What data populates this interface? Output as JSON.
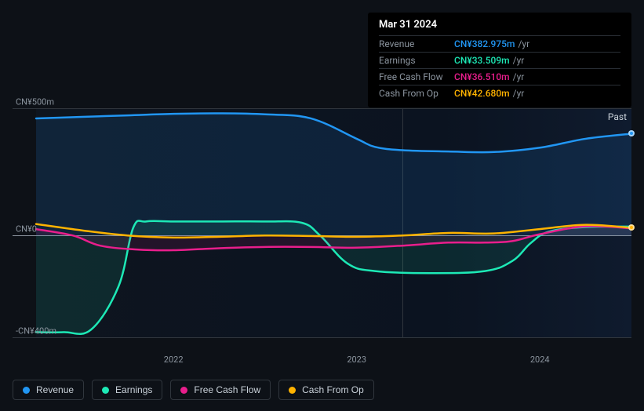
{
  "tooltip": {
    "title": "Mar 31 2024",
    "suffix": "/yr",
    "rows": [
      {
        "label": "Revenue",
        "value": "CN¥382.975m",
        "color": "#2196f3"
      },
      {
        "label": "Earnings",
        "value": "CN¥33.509m",
        "color": "#1de9b6"
      },
      {
        "label": "Free Cash Flow",
        "value": "CN¥36.510m",
        "color": "#e91e8c"
      },
      {
        "label": "Cash From Op",
        "value": "CN¥42.680m",
        "color": "#ffb300"
      }
    ]
  },
  "chart": {
    "type": "area",
    "background_gradient": [
      "#0e151f",
      "#0f1b2e"
    ],
    "grid_color": "#30363d",
    "zero_line_color": "#8b949e",
    "past_label": "Past",
    "y_domain": [
      -400,
      500
    ],
    "y_ticks": [
      {
        "v": 500,
        "label": "CN¥500m"
      },
      {
        "v": 0,
        "label": "CN¥0"
      },
      {
        "v": -400,
        "label": "-CN¥400m"
      }
    ],
    "x_domain": [
      2021.25,
      2024.5
    ],
    "x_ticks": [
      {
        "v": 2022,
        "label": "2022"
      },
      {
        "v": 2023,
        "label": "2023"
      },
      {
        "v": 2024,
        "label": "2024"
      }
    ],
    "vline_x": 2023.25,
    "line_width": 2.5,
    "series": [
      {
        "name": "revenue",
        "label": "Revenue",
        "color": "#2196f3",
        "fill_opacity": 0.12,
        "points": [
          [
            2021.25,
            460
          ],
          [
            2021.5,
            466
          ],
          [
            2021.75,
            472
          ],
          [
            2022.0,
            478
          ],
          [
            2022.25,
            480
          ],
          [
            2022.5,
            476
          ],
          [
            2022.75,
            460
          ],
          [
            2023.0,
            380
          ],
          [
            2023.1,
            348
          ],
          [
            2023.25,
            335
          ],
          [
            2023.5,
            330
          ],
          [
            2023.75,
            328
          ],
          [
            2024.0,
            345
          ],
          [
            2024.25,
            380
          ],
          [
            2024.5,
            400
          ]
        ]
      },
      {
        "name": "earnings",
        "label": "Earnings",
        "color": "#1de9b6",
        "fill_opacity": 0.1,
        "points": [
          [
            2021.25,
            -380
          ],
          [
            2021.4,
            -380
          ],
          [
            2021.55,
            -370
          ],
          [
            2021.7,
            -200
          ],
          [
            2021.78,
            30
          ],
          [
            2021.85,
            55
          ],
          [
            2022.0,
            55
          ],
          [
            2022.25,
            55
          ],
          [
            2022.5,
            55
          ],
          [
            2022.7,
            50
          ],
          [
            2022.8,
            0
          ],
          [
            2022.95,
            -110
          ],
          [
            2023.1,
            -140
          ],
          [
            2023.4,
            -148
          ],
          [
            2023.7,
            -140
          ],
          [
            2023.85,
            -100
          ],
          [
            2023.95,
            -30
          ],
          [
            2024.05,
            15
          ],
          [
            2024.25,
            33
          ],
          [
            2024.5,
            35
          ]
        ]
      },
      {
        "name": "fcf",
        "label": "Free Cash Flow",
        "color": "#e91e8c",
        "fill_opacity": 0.1,
        "points": [
          [
            2021.25,
            25
          ],
          [
            2021.45,
            0
          ],
          [
            2021.6,
            -40
          ],
          [
            2021.8,
            -55
          ],
          [
            2022.0,
            -58
          ],
          [
            2022.25,
            -50
          ],
          [
            2022.5,
            -45
          ],
          [
            2022.75,
            -45
          ],
          [
            2023.0,
            -48
          ],
          [
            2023.25,
            -40
          ],
          [
            2023.5,
            -28
          ],
          [
            2023.7,
            -28
          ],
          [
            2023.85,
            -22
          ],
          [
            2024.0,
            5
          ],
          [
            2024.25,
            36
          ],
          [
            2024.5,
            28
          ]
        ]
      },
      {
        "name": "cfo",
        "label": "Cash From Op",
        "color": "#ffb300",
        "fill_opacity": 0.0,
        "points": [
          [
            2021.25,
            45
          ],
          [
            2021.5,
            20
          ],
          [
            2021.75,
            0
          ],
          [
            2022.0,
            -8
          ],
          [
            2022.25,
            -5
          ],
          [
            2022.5,
            0
          ],
          [
            2022.75,
            -2
          ],
          [
            2023.0,
            -5
          ],
          [
            2023.25,
            0
          ],
          [
            2023.5,
            10
          ],
          [
            2023.75,
            8
          ],
          [
            2024.0,
            25
          ],
          [
            2024.25,
            42
          ],
          [
            2024.5,
            30
          ]
        ]
      }
    ]
  },
  "legend": [
    {
      "label": "Revenue",
      "color": "#2196f3",
      "key": "revenue"
    },
    {
      "label": "Earnings",
      "color": "#1de9b6",
      "key": "earnings"
    },
    {
      "label": "Free Cash Flow",
      "color": "#e91e8c",
      "key": "fcf"
    },
    {
      "label": "Cash From Op",
      "color": "#ffb300",
      "key": "cfo"
    }
  ]
}
